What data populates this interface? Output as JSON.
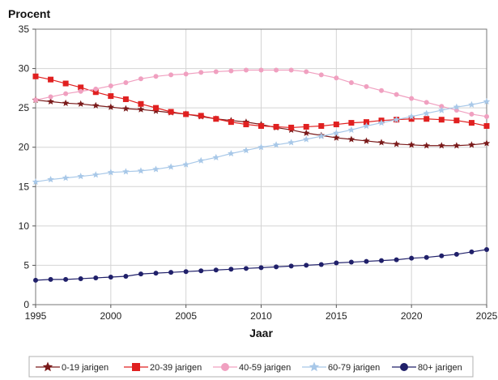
{
  "chart_data": {
    "type": "line",
    "ylabel": "Procent",
    "xlabel": "Jaar",
    "xlim": [
      1995,
      2025
    ],
    "ylim": [
      0,
      35
    ],
    "x_ticks": [
      1995,
      2000,
      2005,
      2010,
      2015,
      2020,
      2025
    ],
    "y_ticks": [
      0,
      5,
      10,
      15,
      20,
      25,
      30,
      35
    ],
    "grid": true,
    "legend_position": "bottom",
    "x": [
      1995,
      1996,
      1997,
      1998,
      1999,
      2000,
      2001,
      2002,
      2003,
      2004,
      2005,
      2006,
      2007,
      2008,
      2009,
      2010,
      2011,
      2012,
      2013,
      2014,
      2015,
      2016,
      2017,
      2018,
      2019,
      2020,
      2021,
      2022,
      2023,
      2024,
      2025
    ],
    "series": [
      {
        "name": "0-19 jarigen",
        "color": "#7a1a1a",
        "marker": "star",
        "values": [
          26.0,
          25.8,
          25.6,
          25.5,
          25.3,
          25.1,
          24.9,
          24.8,
          24.6,
          24.4,
          24.2,
          23.9,
          23.6,
          23.4,
          23.2,
          22.9,
          22.5,
          22.2,
          21.8,
          21.5,
          21.2,
          21.0,
          20.8,
          20.6,
          20.4,
          20.3,
          20.2,
          20.2,
          20.2,
          20.3,
          20.5
        ]
      },
      {
        "name": "20-39 jarigen",
        "color": "#e02020",
        "marker": "square",
        "values": [
          29.0,
          28.6,
          28.1,
          27.6,
          27.0,
          26.5,
          26.1,
          25.5,
          25.0,
          24.5,
          24.2,
          24.0,
          23.6,
          23.2,
          22.9,
          22.7,
          22.6,
          22.5,
          22.6,
          22.7,
          22.9,
          23.1,
          23.2,
          23.4,
          23.5,
          23.6,
          23.6,
          23.5,
          23.4,
          23.1,
          22.7
        ]
      },
      {
        "name": "40-59 jarigen",
        "color": "#f0a0c0",
        "marker": "circle",
        "values": [
          26.0,
          26.4,
          26.8,
          27.1,
          27.4,
          27.8,
          28.2,
          28.7,
          29.0,
          29.2,
          29.3,
          29.5,
          29.6,
          29.7,
          29.8,
          29.8,
          29.8,
          29.8,
          29.6,
          29.2,
          28.8,
          28.2,
          27.7,
          27.2,
          26.7,
          26.2,
          25.7,
          25.2,
          24.7,
          24.2,
          23.9
        ]
      },
      {
        "name": "60-79 jarigen",
        "color": "#a8c8e8",
        "marker": "star",
        "values": [
          15.6,
          15.9,
          16.1,
          16.3,
          16.5,
          16.8,
          16.9,
          17.0,
          17.2,
          17.5,
          17.8,
          18.3,
          18.7,
          19.2,
          19.6,
          20.0,
          20.3,
          20.6,
          21.0,
          21.4,
          21.8,
          22.2,
          22.7,
          23.1,
          23.5,
          23.9,
          24.3,
          24.7,
          25.1,
          25.4,
          25.8
        ]
      },
      {
        "name": "80+ jarigen",
        "color": "#20206a",
        "marker": "circle",
        "values": [
          3.1,
          3.2,
          3.2,
          3.3,
          3.4,
          3.5,
          3.6,
          3.9,
          4.0,
          4.1,
          4.2,
          4.3,
          4.4,
          4.5,
          4.6,
          4.7,
          4.8,
          4.9,
          5.0,
          5.1,
          5.3,
          5.4,
          5.5,
          5.6,
          5.7,
          5.9,
          6.0,
          6.2,
          6.4,
          6.7,
          7.0
        ]
      }
    ]
  }
}
